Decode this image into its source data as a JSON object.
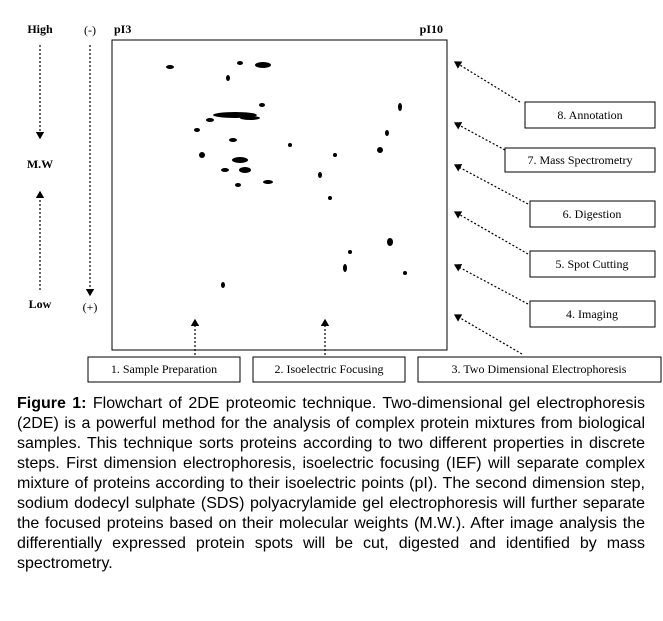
{
  "labels": {
    "high": "High",
    "mw": "M.W",
    "low": "Low",
    "minus": "(-)",
    "plus": "(+)",
    "pi3": "pI3",
    "pi10": "pI10"
  },
  "steps": [
    "1. Sample Preparation",
    "2. Isoelectric Focusing",
    "3. Two Dimensional Electrophoresis",
    "4. Imaging",
    "5. Spot Cutting",
    "6. Digestion",
    "7. Mass Spectrometry",
    "8. Annotation"
  ],
  "caption": {
    "label": "Figure 1:",
    "text": "Flowchart of 2DE proteomic technique. Two-dimensional gel electrophoresis (2DE) is a powerful method for the analysis of complex protein mixtures from biological samples. This technique sorts proteins according to two different properties in discrete steps. First dimension electrophoresis, isoelectric focusing (IEF) will separate complex mixture of proteins according to their isoelectric points (pI). The second dimension step, sodium dodecyl sulphate (SDS) polyacrylamide gel electrophoresis will further separate the focused proteins based on their molecular weights (M.W.). After image analysis the differentially expressed protein spots will be cut, digested and identified by mass spectrometry."
  }
}
